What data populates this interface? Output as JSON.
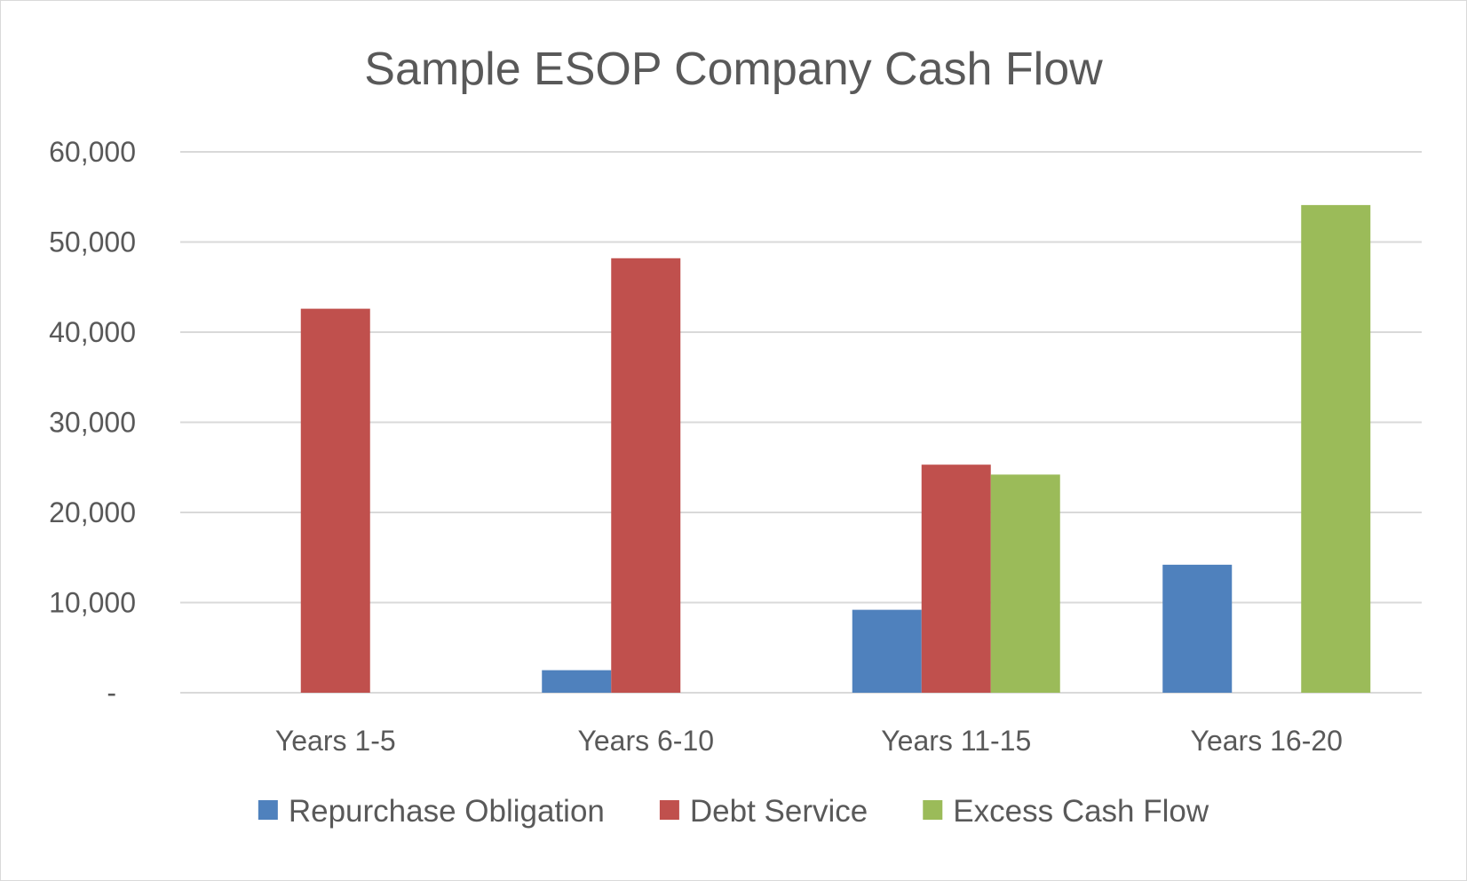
{
  "chart_data": {
    "type": "bar",
    "title": "Sample ESOP Company Cash Flow",
    "categories": [
      "Years 1-5",
      "Years 6-10",
      "Years 11-15",
      "Years 16-20"
    ],
    "series": [
      {
        "name": "Repurchase Obligation",
        "color": "#4f81bd",
        "values": [
          0,
          2500,
          9200,
          14200
        ]
      },
      {
        "name": "Debt Service",
        "color": "#c0504d",
        "values": [
          42600,
          48200,
          25300,
          0
        ]
      },
      {
        "name": "Excess Cash Flow",
        "color": "#9bbb59",
        "values": [
          0,
          0,
          24200,
          54100
        ]
      }
    ],
    "ylim": [
      0,
      60000
    ],
    "yticks": [
      {
        "value": 0,
        "label": "-"
      },
      {
        "value": 10000,
        "label": "10,000"
      },
      {
        "value": 20000,
        "label": "20,000"
      },
      {
        "value": 30000,
        "label": "30,000"
      },
      {
        "value": 40000,
        "label": "40,000"
      },
      {
        "value": 50000,
        "label": "50,000"
      },
      {
        "value": 60000,
        "label": "60,000"
      }
    ],
    "grid": true,
    "legend_position": "bottom",
    "gridline_color": "#d9d9d9",
    "text_color": "#595959"
  }
}
